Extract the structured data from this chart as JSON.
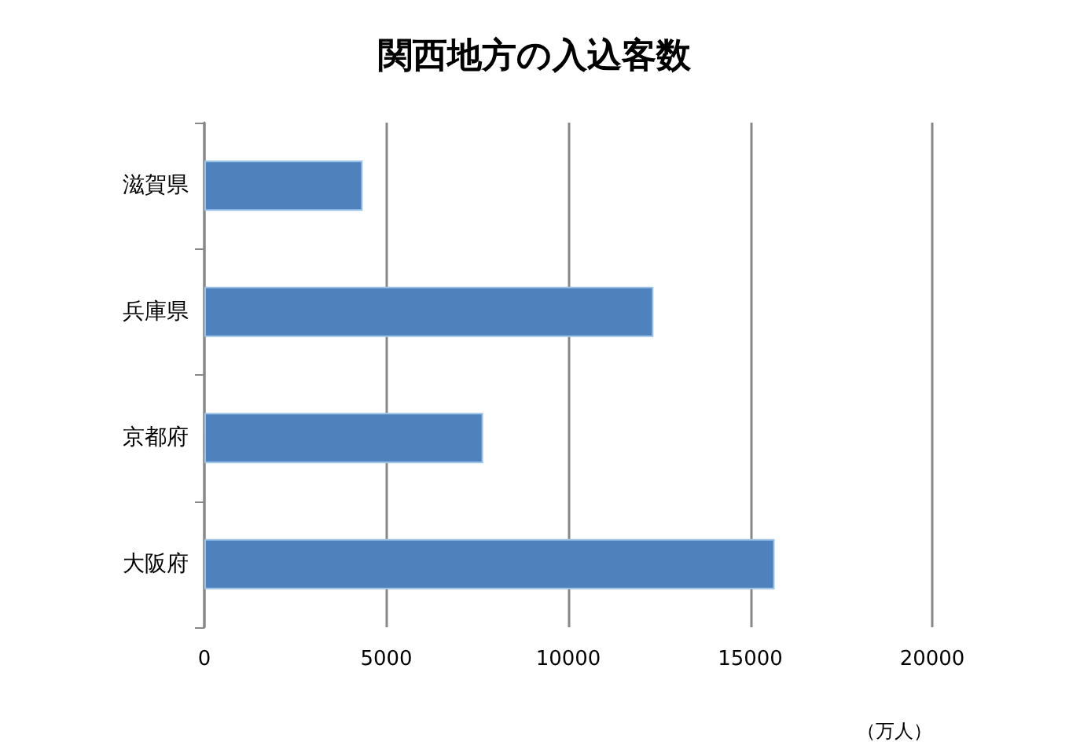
{
  "chart_data": {
    "type": "bar",
    "orientation": "horizontal",
    "title": "関西地方の入込客数",
    "xlabel": "（万人）",
    "categories": [
      "滋賀県",
      "兵庫県",
      "京都府",
      "大阪府"
    ],
    "values": [
      4350,
      12340,
      7660,
      15670
    ],
    "color": "#4f81bd",
    "xlim": [
      0,
      20000
    ],
    "xticks": [
      0,
      5000,
      10000,
      15000,
      20000
    ],
    "grid": "x"
  }
}
